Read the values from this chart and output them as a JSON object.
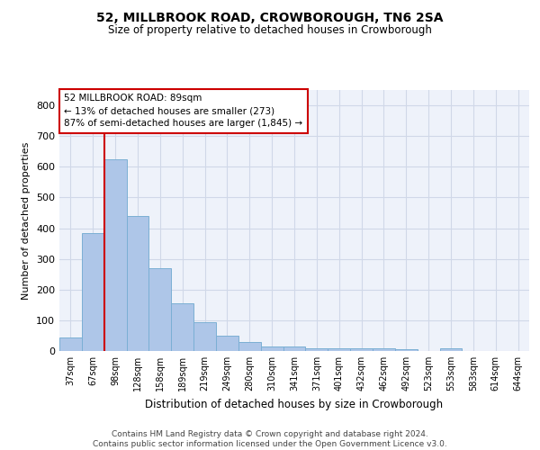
{
  "title": "52, MILLBROOK ROAD, CROWBOROUGH, TN6 2SA",
  "subtitle": "Size of property relative to detached houses in Crowborough",
  "xlabel": "Distribution of detached houses by size in Crowborough",
  "ylabel": "Number of detached properties",
  "categories": [
    "37sqm",
    "67sqm",
    "98sqm",
    "128sqm",
    "158sqm",
    "189sqm",
    "219sqm",
    "249sqm",
    "280sqm",
    "310sqm",
    "341sqm",
    "371sqm",
    "401sqm",
    "432sqm",
    "462sqm",
    "492sqm",
    "523sqm",
    "553sqm",
    "583sqm",
    "614sqm",
    "644sqm"
  ],
  "values": [
    45,
    385,
    625,
    440,
    270,
    155,
    95,
    50,
    28,
    15,
    15,
    10,
    10,
    10,
    10,
    5,
    0,
    10,
    0,
    0,
    0
  ],
  "bar_color": "#aec6e8",
  "bar_edge_color": "#7bafd4",
  "grid_color": "#d0d8e8",
  "bg_color": "#eef2fa",
  "vline_color": "#cc0000",
  "vline_x": 1.5,
  "annotation_text": "52 MILLBROOK ROAD: 89sqm\n← 13% of detached houses are smaller (273)\n87% of semi-detached houses are larger (1,845) →",
  "annotation_box_color": "#ffffff",
  "annotation_box_edge": "#cc0000",
  "footer": "Contains HM Land Registry data © Crown copyright and database right 2024.\nContains public sector information licensed under the Open Government Licence v3.0.",
  "ylim": [
    0,
    850
  ],
  "yticks": [
    0,
    100,
    200,
    300,
    400,
    500,
    600,
    700,
    800
  ]
}
